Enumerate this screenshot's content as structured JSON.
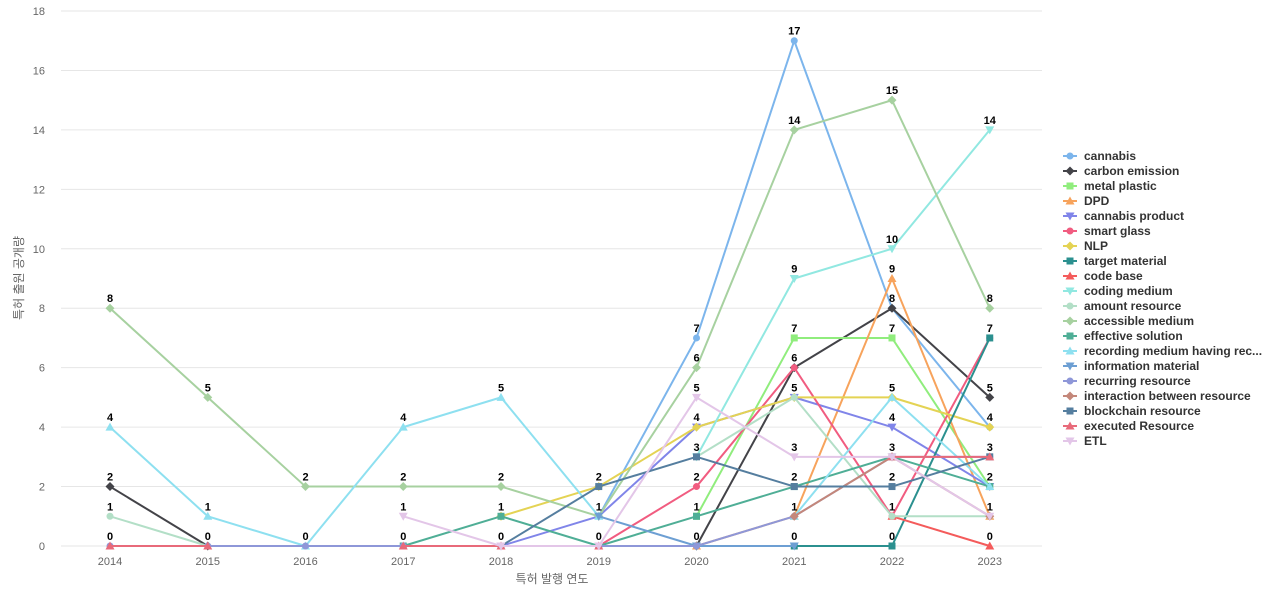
{
  "chart_data": {
    "type": "line",
    "title": "",
    "xlabel": "특허 발행 연도",
    "ylabel": "특허 출원 공개량",
    "ylim": [
      0,
      18
    ],
    "yticks": [
      0,
      2,
      4,
      6,
      8,
      10,
      12,
      14,
      16,
      18
    ],
    "grid": true,
    "legend_position": "right",
    "x": [
      "2014",
      "2015",
      "2016",
      "2017",
      "2018",
      "2019",
      "2020",
      "2021",
      "2022",
      "2023"
    ],
    "series": [
      {
        "name": "cannabis",
        "color": "#7cb5ec",
        "marker": "circle",
        "values": [
          null,
          null,
          null,
          null,
          null,
          1,
          7,
          17,
          8,
          4
        ]
      },
      {
        "name": "carbon emission",
        "color": "#434348",
        "marker": "diamond",
        "values": [
          2,
          0,
          null,
          null,
          null,
          null,
          0,
          6,
          8,
          5
        ]
      },
      {
        "name": "metal plastic",
        "color": "#90ed7d",
        "marker": "square",
        "values": [
          null,
          null,
          null,
          null,
          null,
          null,
          1,
          7,
          7,
          2
        ]
      },
      {
        "name": "DPD",
        "color": "#f7a35c",
        "marker": "triangle",
        "values": [
          null,
          null,
          null,
          null,
          null,
          null,
          0,
          1,
          9,
          1
        ]
      },
      {
        "name": "cannabis product",
        "color": "#8085e9",
        "marker": "triangle-down",
        "values": [
          null,
          null,
          null,
          null,
          0,
          1,
          4,
          5,
          4,
          2
        ]
      },
      {
        "name": "smart glass",
        "color": "#f15c80",
        "marker": "circle",
        "values": [
          null,
          null,
          null,
          null,
          null,
          0,
          2,
          6,
          1,
          7
        ]
      },
      {
        "name": "NLP",
        "color": "#e4d354",
        "marker": "diamond",
        "values": [
          null,
          null,
          null,
          null,
          1,
          2,
          4,
          5,
          5,
          4
        ]
      },
      {
        "name": "target material",
        "color": "#2b908f",
        "marker": "square",
        "values": [
          null,
          null,
          null,
          null,
          null,
          null,
          null,
          0,
          0,
          7
        ]
      },
      {
        "name": "code base",
        "color": "#f45b5b",
        "marker": "triangle",
        "values": [
          null,
          null,
          null,
          null,
          null,
          null,
          null,
          null,
          1,
          0
        ]
      },
      {
        "name": "coding medium",
        "color": "#91e8e1",
        "marker": "triangle-down",
        "values": [
          null,
          null,
          null,
          null,
          null,
          null,
          3,
          9,
          10,
          14
        ]
      },
      {
        "name": "amount resource",
        "color": "#b3dfc7",
        "marker": "circle",
        "values": [
          1,
          0,
          null,
          null,
          null,
          null,
          3,
          5,
          1,
          1
        ]
      },
      {
        "name": "accessible medium",
        "color": "#a7d1a0",
        "marker": "diamond",
        "values": [
          8,
          5,
          2,
          2,
          2,
          1,
          6,
          14,
          15,
          8
        ]
      },
      {
        "name": "effective solution",
        "color": "#4fae96",
        "marker": "square",
        "values": [
          null,
          null,
          null,
          0,
          1,
          0,
          1,
          2,
          3,
          2
        ]
      },
      {
        "name": "recording medium having rec...",
        "color": "#8ee0f0",
        "marker": "triangle",
        "values": [
          4,
          1,
          0,
          4,
          5,
          1,
          null,
          1,
          5,
          2
        ]
      },
      {
        "name": "information material",
        "color": "#6d9fd3",
        "marker": "triangle-down",
        "values": [
          null,
          null,
          null,
          null,
          null,
          1,
          0,
          0,
          null,
          null
        ]
      },
      {
        "name": "recurring resource",
        "color": "#8e97d8",
        "marker": "circle",
        "values": [
          0,
          0,
          0,
          0,
          0,
          0,
          0,
          1,
          3,
          3
        ]
      },
      {
        "name": "interaction between resource",
        "color": "#c4877a",
        "marker": "diamond",
        "values": [
          null,
          null,
          null,
          null,
          null,
          null,
          null,
          1,
          3,
          1
        ]
      },
      {
        "name": "blockchain resource",
        "color": "#557e9f",
        "marker": "square",
        "values": [
          null,
          null,
          null,
          null,
          0,
          2,
          3,
          2,
          2,
          3
        ]
      },
      {
        "name": "executed Resource",
        "color": "#e86a7a",
        "marker": "triangle",
        "values": [
          0,
          0,
          null,
          0,
          0,
          0,
          null,
          null,
          3,
          3
        ]
      },
      {
        "name": "ETL",
        "color": "#e3c6e8",
        "marker": "triangle-down",
        "values": [
          null,
          null,
          null,
          1,
          0,
          0,
          5,
          3,
          3,
          1
        ]
      }
    ],
    "data_labels": [
      {
        "x": "2014",
        "value": 8
      },
      {
        "x": "2014",
        "value": 4
      },
      {
        "x": "2014",
        "value": 2
      },
      {
        "x": "2014",
        "value": 1
      },
      {
        "x": "2014",
        "value": 0
      },
      {
        "x": "2015",
        "value": 5
      },
      {
        "x": "2015",
        "value": 1
      },
      {
        "x": "2015",
        "value": 0
      },
      {
        "x": "2016",
        "value": 2
      },
      {
        "x": "2016",
        "value": 0
      },
      {
        "x": "2017",
        "value": 4
      },
      {
        "x": "2017",
        "value": 2
      },
      {
        "x": "2017",
        "value": 1
      },
      {
        "x": "2017",
        "value": 0
      },
      {
        "x": "2018",
        "value": 5
      },
      {
        "x": "2018",
        "value": 2
      },
      {
        "x": "2018",
        "value": 1
      },
      {
        "x": "2018",
        "value": 0
      },
      {
        "x": "2019",
        "value": 2
      },
      {
        "x": "2019",
        "value": 1
      },
      {
        "x": "2019",
        "value": 0
      },
      {
        "x": "2020",
        "value": 7
      },
      {
        "x": "2020",
        "value": 6
      },
      {
        "x": "2020",
        "value": 5
      },
      {
        "x": "2020",
        "value": 4
      },
      {
        "x": "2020",
        "value": 3
      },
      {
        "x": "2020",
        "value": 2
      },
      {
        "x": "2020",
        "value": 1
      },
      {
        "x": "2020",
        "value": 0
      },
      {
        "x": "2021",
        "value": 17
      },
      {
        "x": "2021",
        "value": 14
      },
      {
        "x": "2021",
        "value": 9
      },
      {
        "x": "2021",
        "value": 7
      },
      {
        "x": "2021",
        "value": 6
      },
      {
        "x": "2021",
        "value": 5
      },
      {
        "x": "2021",
        "value": 3
      },
      {
        "x": "2021",
        "value": 2
      },
      {
        "x": "2021",
        "value": 1
      },
      {
        "x": "2021",
        "value": 0
      },
      {
        "x": "2022",
        "value": 15
      },
      {
        "x": "2022",
        "value": 10
      },
      {
        "x": "2022",
        "value": 9
      },
      {
        "x": "2022",
        "value": 8
      },
      {
        "x": "2022",
        "value": 7
      },
      {
        "x": "2022",
        "value": 5
      },
      {
        "x": "2022",
        "value": 4
      },
      {
        "x": "2022",
        "value": 3
      },
      {
        "x": "2022",
        "value": 2
      },
      {
        "x": "2022",
        "value": 1
      },
      {
        "x": "2022",
        "value": 0
      },
      {
        "x": "2023",
        "value": 14
      },
      {
        "x": "2023",
        "value": 8
      },
      {
        "x": "2023",
        "value": 7
      },
      {
        "x": "2023",
        "value": 5
      },
      {
        "x": "2023",
        "value": 4
      },
      {
        "x": "2023",
        "value": 3
      },
      {
        "x": "2023",
        "value": 2
      },
      {
        "x": "2023",
        "value": 1
      },
      {
        "x": "2023",
        "value": 0
      }
    ]
  }
}
